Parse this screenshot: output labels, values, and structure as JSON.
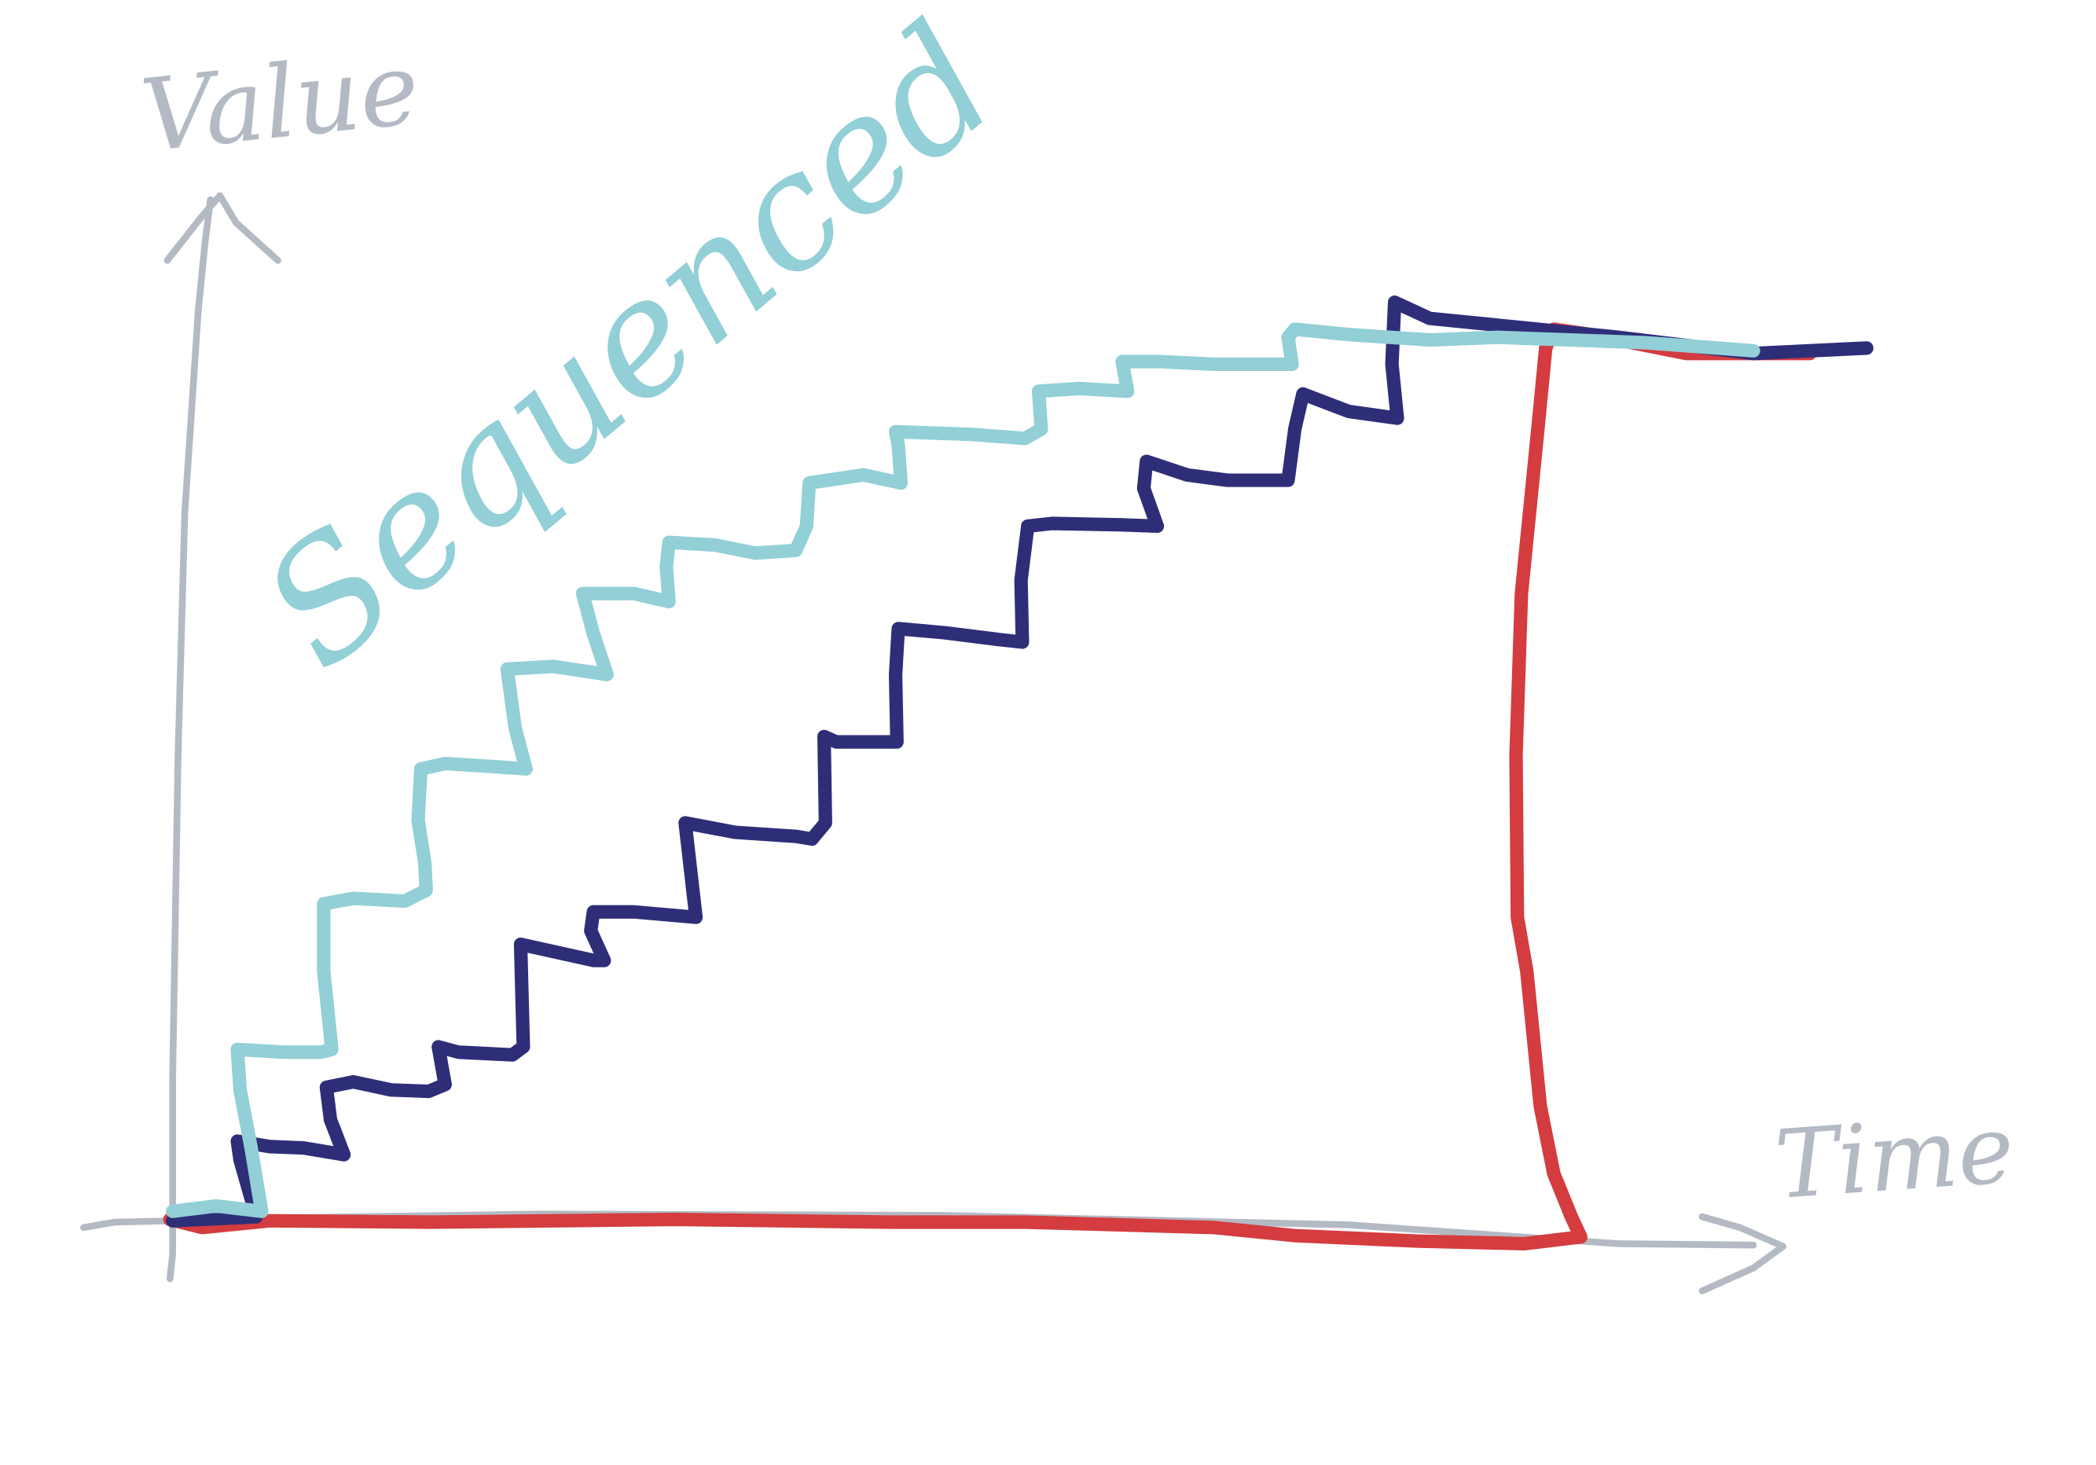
{
  "axes": {
    "y_label": "Value",
    "x_label": "Time",
    "color": "#b3bac3"
  },
  "series": [
    {
      "name": "Sequenced",
      "color": "#92cfd6",
      "shape": "staircase-steep"
    },
    {
      "color": "#2e2e78",
      "shape": "staircase-gradual"
    },
    {
      "color": "#d43c3f",
      "shape": "flat-then-jump"
    }
  ]
}
